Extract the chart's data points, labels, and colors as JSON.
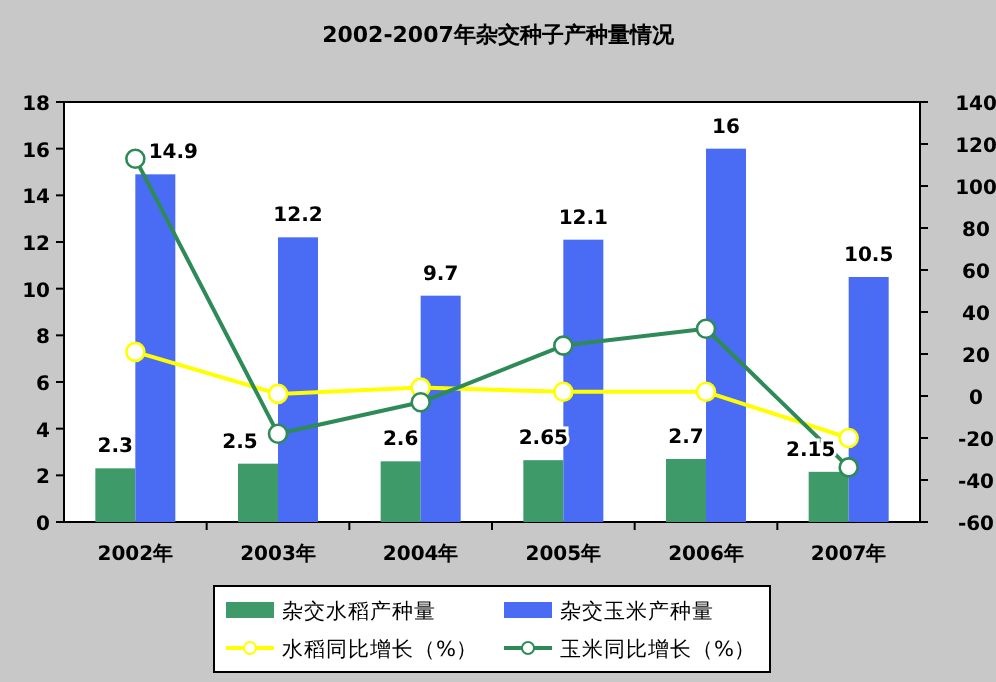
{
  "chart_data": {
    "type": "bar",
    "title": "2002-2007年杂交种子产种量情况",
    "categories": [
      "2002年",
      "2003年",
      "2004年",
      "2005年",
      "2006年",
      "2007年"
    ],
    "series": [
      {
        "name": "杂交水稻产种量",
        "color": "#3f9a6a",
        "values": [
          2.3,
          2.5,
          2.6,
          2.65,
          2.7,
          2.15
        ],
        "value_labels": [
          "2.3",
          "2.5",
          "2.6",
          "2.65",
          "2.7",
          "2.15"
        ]
      },
      {
        "name": "杂交玉米产种量",
        "color": "#4a6cf5",
        "values": [
          14.9,
          12.2,
          9.7,
          12.1,
          16,
          10.5
        ],
        "value_labels": [
          "14.9",
          "12.2",
          "9.7",
          "12.1",
          "16",
          "10.5"
        ]
      },
      {
        "name": "水稻同比增长（%）",
        "type": "line",
        "axis": "y2",
        "color": "#ffff00",
        "values": [
          21,
          1,
          4,
          2,
          2,
          -20
        ]
      },
      {
        "name": "玉米同比增长（%）",
        "type": "line",
        "axis": "y2",
        "color": "#2e8b57",
        "values": [
          113,
          -18,
          -3,
          24,
          32,
          -34
        ]
      }
    ],
    "ylim": [
      0,
      18
    ],
    "yticks": [
      0,
      2,
      4,
      6,
      8,
      10,
      12,
      14,
      16,
      18
    ],
    "y2lim": [
      -60,
      140
    ],
    "y2ticks": [
      -60,
      -40,
      -20,
      0,
      20,
      40,
      60,
      80,
      100,
      120,
      140
    ],
    "legend": "bottom",
    "marker": "circle",
    "grid": false
  }
}
